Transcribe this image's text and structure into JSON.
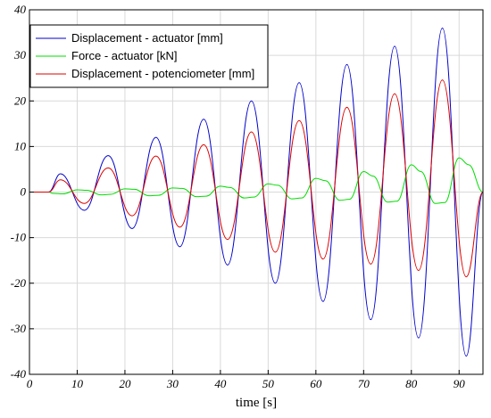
{
  "chart_data": {
    "type": "line",
    "title": "",
    "xlabel": "time [s]",
    "ylabel": "",
    "xlim": [
      0,
      95
    ],
    "ylim": [
      -40,
      40
    ],
    "x_ticks": [
      0,
      10,
      20,
      30,
      40,
      50,
      60,
      70,
      80,
      90
    ],
    "y_ticks": [
      -40,
      -30,
      -20,
      -10,
      0,
      10,
      20,
      30,
      40
    ],
    "grid": true,
    "legend_position": "top-left",
    "series": [
      {
        "name": "Displacement - actuator [mm]",
        "color": "#0000cc",
        "x": [
          0,
          4,
          6.5,
          11.5,
          16.5,
          21.5,
          26.5,
          31.5,
          36.5,
          41.5,
          46.5,
          51.5,
          56.5,
          61.5,
          66.5,
          71.5,
          76.5,
          81.5,
          86.5,
          91.5,
          95
        ],
        "y": [
          0,
          0,
          4,
          -4,
          8,
          -8,
          12,
          -12,
          16,
          -16,
          20,
          -20,
          24,
          -24,
          28,
          -28,
          32,
          -32,
          36,
          -36,
          0
        ]
      },
      {
        "name": "Force - actuator [kN]",
        "color": "#00dd00",
        "x": [
          0,
          4,
          5,
          7,
          10,
          12,
          15,
          17,
          20,
          22,
          25,
          27,
          30,
          32,
          35,
          37,
          40,
          42,
          45,
          47,
          50,
          52,
          55,
          57,
          60,
          62,
          65,
          67,
          70,
          72,
          75,
          77,
          80,
          82,
          85,
          87,
          90,
          92,
          95
        ],
        "y": [
          0,
          0,
          -0.3,
          -0.4,
          0.5,
          0.4,
          -0.6,
          -0.5,
          0.7,
          0.6,
          -0.8,
          -0.7,
          0.9,
          0.8,
          -1.0,
          -0.9,
          1.3,
          1.0,
          -1.3,
          -1.1,
          1.8,
          1.5,
          -1.5,
          -1.3,
          3.0,
          2.5,
          -1.8,
          -1.6,
          4.5,
          3.5,
          -2.2,
          -2.0,
          6.0,
          4.5,
          -2.5,
          -2.3,
          7.5,
          6.0,
          0
        ]
      },
      {
        "name": "Displacement - potenciometer [mm]",
        "color": "#dd0000",
        "x": [
          0,
          4,
          6.5,
          11.5,
          16.5,
          21.5,
          26.5,
          31.5,
          36.5,
          41.5,
          46.5,
          51.5,
          56.5,
          61.5,
          66.5,
          71.5,
          76.5,
          81.5,
          86.5,
          91.5,
          95
        ],
        "y": [
          0,
          0,
          2.7,
          -2.5,
          5.3,
          -5.2,
          7.9,
          -7.7,
          10.4,
          -10.4,
          13.2,
          -13.2,
          15.7,
          -14.7,
          18.6,
          -15.8,
          21.6,
          -17.2,
          24.6,
          -18.6,
          0
        ]
      }
    ]
  }
}
